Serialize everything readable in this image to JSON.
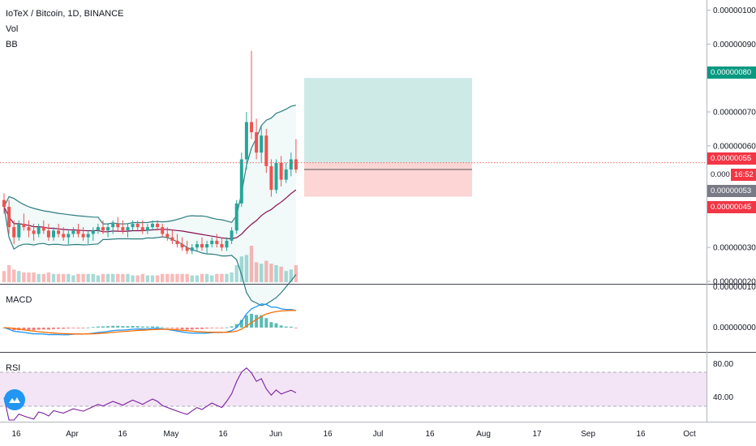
{
  "header": {
    "symbol_line": "IoTeX / Bitcoin, 1D, BINANCE",
    "vol_label": "Vol",
    "bb_label": "BB"
  },
  "indicators": {
    "macd_label": "MACD",
    "rsi_label": "RSI",
    "rsi_levels": [
      "80.00",
      "40.00"
    ],
    "macd_levels": [
      "0.00000010",
      "0.00000000"
    ]
  },
  "price_axis": {
    "ticks": [
      "0.00000100",
      "0.00000090",
      "0.00000070",
      "0.00000060",
      "0.00000030",
      "0.00000020"
    ],
    "ticks_values": [
      100,
      90,
      70,
      60,
      30,
      20
    ],
    "partial_tick": "0.000",
    "labels": {
      "take_profit": "0.00000080",
      "entry": "0.00000055",
      "countdown": "16:52",
      "last_price": "0.00000053",
      "stop_loss": "0.00000045"
    }
  },
  "time_axis": {
    "labels": [
      "16",
      "Apr",
      "16",
      "May",
      "16",
      "Jun",
      "16",
      "Jul",
      "16",
      "Aug",
      "17",
      "Sep",
      "16",
      "Oct"
    ]
  },
  "colors": {
    "up": "#26a69a",
    "down": "#ef5350",
    "bb": "#2e7d82",
    "basis": "#880e4f",
    "macd_line": "#2196f3",
    "signal_line": "#ff6d00",
    "rsi_line": "#7b1fa2",
    "profit_zone": "#cdeae7",
    "loss_zone": "#fdd5d5",
    "last_price_label": "#787b86",
    "take_profit_label": "#089981",
    "red_label": "#f23645"
  },
  "chart_data": {
    "type": "candlestick",
    "price_unit": "1e-8 BTC",
    "ylim": [
      18,
      102
    ],
    "candles_ohlc": [
      [
        44,
        46,
        40,
        42
      ],
      [
        42,
        44,
        34,
        36
      ],
      [
        36,
        38,
        31,
        33
      ],
      [
        33,
        38,
        32,
        37
      ],
      [
        37,
        40,
        35,
        36
      ],
      [
        36,
        38,
        33,
        35
      ],
      [
        35,
        37,
        32,
        34
      ],
      [
        34,
        37,
        33,
        36
      ],
      [
        36,
        38,
        34,
        35
      ],
      [
        35,
        37,
        32,
        33
      ],
      [
        33,
        36,
        32,
        35
      ],
      [
        35,
        37,
        33,
        34
      ],
      [
        34,
        36,
        32,
        33
      ],
      [
        33,
        35,
        31,
        34
      ],
      [
        34,
        36,
        33,
        35
      ],
      [
        35,
        37,
        33,
        34
      ],
      [
        34,
        36,
        32,
        33
      ],
      [
        33,
        35,
        31,
        34
      ],
      [
        34,
        36,
        32,
        35
      ],
      [
        35,
        37,
        34,
        36
      ],
      [
        36,
        38,
        34,
        35
      ],
      [
        35,
        37,
        33,
        36
      ],
      [
        36,
        38,
        34,
        37
      ],
      [
        37,
        39,
        35,
        36
      ],
      [
        36,
        38,
        34,
        35
      ],
      [
        35,
        37,
        33,
        36
      ],
      [
        36,
        38,
        35,
        37
      ],
      [
        37,
        38,
        35,
        36
      ],
      [
        36,
        38,
        34,
        35
      ],
      [
        35,
        37,
        34,
        36
      ],
      [
        36,
        38,
        35,
        37
      ],
      [
        37,
        38,
        35,
        36
      ],
      [
        36,
        37,
        33,
        34
      ],
      [
        34,
        36,
        32,
        33
      ],
      [
        33,
        35,
        31,
        32
      ],
      [
        32,
        34,
        30,
        31
      ],
      [
        31,
        33,
        29,
        30
      ],
      [
        30,
        32,
        28,
        29
      ],
      [
        29,
        31,
        28,
        30
      ],
      [
        30,
        32,
        29,
        31
      ],
      [
        31,
        33,
        29,
        30
      ],
      [
        30,
        32,
        28,
        31
      ],
      [
        31,
        33,
        30,
        32
      ],
      [
        32,
        34,
        30,
        31
      ],
      [
        31,
        33,
        29,
        30
      ],
      [
        30,
        33,
        29,
        32
      ],
      [
        32,
        36,
        31,
        35
      ],
      [
        35,
        44,
        34,
        43
      ],
      [
        43,
        58,
        42,
        56
      ],
      [
        56,
        70,
        53,
        67
      ],
      [
        67,
        88,
        62,
        64
      ],
      [
        64,
        68,
        56,
        58
      ],
      [
        58,
        66,
        55,
        63
      ],
      [
        63,
        65,
        52,
        54
      ],
      [
        54,
        56,
        45,
        47
      ],
      [
        47,
        56,
        46,
        55
      ],
      [
        55,
        57,
        48,
        50
      ],
      [
        50,
        55,
        49,
        53
      ],
      [
        53,
        58,
        51,
        56
      ],
      [
        56,
        62,
        52,
        53
      ]
    ],
    "trade_zone": {
      "take_profit": 80,
      "entry": 55,
      "stop_loss": 45,
      "last_price": 53
    }
  }
}
